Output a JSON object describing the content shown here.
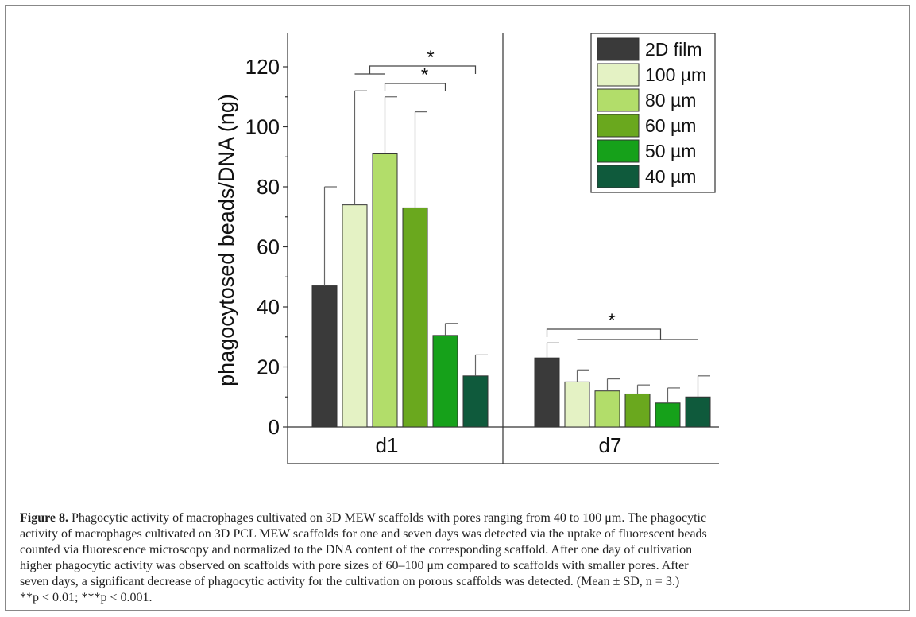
{
  "chart_data": {
    "type": "bar",
    "ylabel": "phagocytosed beads/DNA (ng)",
    "ylim": [
      0,
      130
    ],
    "yticks": [
      0,
      20,
      40,
      60,
      80,
      100,
      120
    ],
    "groups": [
      "d1",
      "d7"
    ],
    "series": [
      {
        "name": "2D film",
        "color": "#3a3a3a",
        "values": [
          47,
          23
        ],
        "errors": [
          33,
          5
        ]
      },
      {
        "name": "100 µm",
        "color": "#e4f2c4",
        "values": [
          74,
          15
        ],
        "errors": [
          38,
          4
        ]
      },
      {
        "name": "80 µm",
        "color": "#b2dd6a",
        "values": [
          91,
          12
        ],
        "errors": [
          19,
          4
        ]
      },
      {
        "name": "60 µm",
        "color": "#6aa81e",
        "values": [
          73,
          11
        ],
        "errors": [
          32,
          3
        ]
      },
      {
        "name": "50 µm",
        "color": "#16a11a",
        "values": [
          30.5,
          8
        ],
        "errors": [
          4,
          5
        ]
      },
      {
        "name": "40 µm",
        "color": "#0f5a3c",
        "values": [
          17,
          10
        ],
        "errors": [
          7,
          7
        ]
      }
    ],
    "legend_position": "top-right",
    "significance": [
      {
        "group": "d1",
        "label": "*"
      },
      {
        "group": "d1",
        "label": "*"
      },
      {
        "group": "d7",
        "label": "*"
      }
    ]
  },
  "caption": {
    "figure_label": "Figure 8.",
    "line1": " Phagocytic activity of macrophages cultivated on 3D MEW scaffolds with pores ranging from 40 to 100 μm. The phagocytic",
    "line2": "activity of macrophages cultivated on 3D PCL MEW scaffolds for one and seven days was detected via the uptake of fluorescent beads",
    "line3": "counted via fluorescence microscopy and normalized to the DNA content of the corresponding scaffold. After one day of cultivation",
    "line4": "higher phagocytic activity was observed on scaffolds with pore sizes of 60–100 μm compared to scaffolds with smaller pores. After",
    "line5": "seven days, a significant decrease of phagocytic activity for the cultivation on porous scaffolds was detected. (Mean ± SD, n = 3.)",
    "line6": "**p < 0.01; ***p < 0.001."
  }
}
